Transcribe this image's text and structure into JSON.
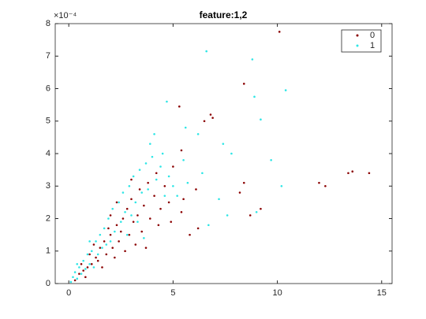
{
  "chart_data": {
    "type": "scatter",
    "title": "feature:1,2",
    "y_exponent_label": "×10⁻⁴",
    "xlim": [
      -0.65,
      15.5
    ],
    "ylim": [
      0,
      8
    ],
    "xticks": [
      0,
      5,
      10,
      15
    ],
    "yticks": [
      0,
      1,
      2,
      3,
      4,
      5,
      6,
      7,
      8
    ],
    "legend": "top-right",
    "series": [
      {
        "name": "0",
        "color": "#8b0000",
        "x": [
          10.1,
          8.4,
          5.3,
          6.8,
          6.5,
          6.9,
          5.4,
          8.4,
          8.2,
          12.0,
          12.3,
          13.4,
          13.6,
          14.4,
          9.2,
          8.7,
          6.1,
          5.4,
          5.8,
          6.2,
          0.3,
          0.5,
          0.7,
          0.9,
          1.1,
          1.0,
          1.3,
          1.5,
          1.4,
          1.7,
          1.8,
          2.0,
          2.1,
          2.3,
          2.4,
          2.6,
          2.5,
          2.8,
          2.9,
          3.0,
          3.1,
          3.3,
          3.4,
          3.5,
          3.6,
          3.8,
          3.9,
          4.1,
          4.2,
          4.4,
          4.6,
          4.8,
          5.0,
          1.2,
          1.6,
          2.2,
          2.7,
          3.2,
          2.0,
          1.9,
          0.6,
          0.8,
          3.7,
          4.3,
          4.9,
          5.5,
          2.3,
          3.0
        ],
        "values": [
          7.75,
          6.15,
          5.45,
          5.2,
          5.0,
          5.1,
          4.1,
          3.1,
          2.8,
          3.1,
          3.0,
          3.4,
          3.45,
          3.4,
          2.3,
          2.1,
          2.9,
          2.2,
          1.5,
          1.7,
          0.1,
          0.3,
          0.4,
          0.5,
          0.6,
          0.9,
          0.8,
          1.1,
          0.7,
          1.3,
          0.9,
          1.5,
          1.1,
          1.8,
          1.3,
          2.0,
          1.6,
          2.3,
          1.5,
          2.6,
          1.9,
          2.1,
          2.9,
          1.6,
          2.4,
          3.1,
          2.0,
          2.7,
          3.4,
          2.3,
          3.0,
          2.5,
          3.6,
          1.2,
          0.5,
          0.8,
          1.0,
          1.2,
          2.1,
          1.7,
          0.6,
          0.2,
          1.1,
          1.8,
          1.9,
          2.6,
          2.5,
          3.2
        ]
      },
      {
        "name": "1",
        "color": "#2ee6e6",
        "x": [
          6.6,
          8.8,
          10.4,
          8.9,
          4.7,
          9.2,
          5.6,
          6.2,
          7.4,
          7.8,
          9.7,
          10.2,
          9.0,
          7.6,
          6.7,
          4.1,
          3.9,
          4.5,
          6.4,
          7.2,
          0.1,
          0.2,
          0.3,
          0.4,
          0.5,
          0.6,
          0.7,
          0.8,
          0.9,
          1.0,
          1.1,
          1.2,
          1.3,
          1.4,
          1.5,
          1.6,
          1.7,
          1.8,
          1.9,
          2.0,
          2.1,
          2.2,
          2.4,
          2.5,
          2.6,
          2.7,
          2.9,
          3.0,
          3.1,
          3.2,
          3.4,
          3.5,
          3.7,
          3.8,
          4.0,
          4.2,
          4.4,
          4.6,
          4.8,
          5.0,
          5.2,
          5.5,
          5.7,
          3.3,
          2.8,
          3.6,
          1.0,
          0.4
        ],
        "values": [
          7.15,
          6.9,
          5.95,
          5.75,
          5.6,
          5.05,
          4.8,
          4.6,
          4.3,
          4.0,
          3.8,
          3.0,
          2.2,
          2.1,
          1.8,
          4.6,
          4.3,
          4.0,
          3.4,
          2.6,
          0.05,
          0.2,
          0.35,
          0.15,
          0.5,
          0.3,
          0.7,
          0.45,
          0.9,
          0.6,
          1.0,
          0.5,
          1.3,
          0.9,
          1.5,
          1.1,
          1.7,
          1.2,
          2.0,
          1.3,
          2.3,
          1.6,
          2.5,
          1.9,
          2.8,
          2.2,
          3.0,
          2.1,
          3.3,
          2.5,
          3.5,
          2.8,
          3.7,
          2.9,
          3.9,
          3.2,
          3.6,
          2.7,
          3.3,
          3.0,
          2.7,
          3.8,
          3.1,
          1.9,
          1.5,
          1.4,
          1.3,
          0.6
        ]
      }
    ]
  }
}
